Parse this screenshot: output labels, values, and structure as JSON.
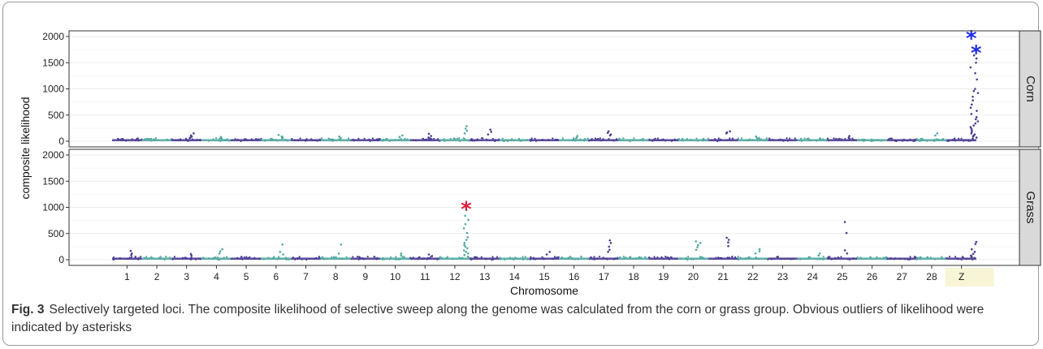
{
  "figure": {
    "caption_label": "Fig. 3",
    "caption_text": "Selectively targeted loci. The composite likelihood of selective sweep along the genome was calculated from the corn or grass group. Obvious outliers of likelihood were indicated by asterisks"
  },
  "colors": {
    "odd_chromosome": "#4a3d94",
    "even_chromosome": "#52a8a0",
    "star_blue": "#1f2ee8",
    "star_red": "#dd1c3a",
    "strip_bg": "#d9d9d9",
    "grid": "#ebebeb",
    "z_highlight": "#f7f5d6"
  },
  "chart_data": {
    "type": "scatter",
    "ylabel": "composite likelihood",
    "xlabel": "Chromosome",
    "ylim": [
      0,
      2000
    ],
    "yticks": [
      0,
      500,
      1000,
      1500,
      2000
    ],
    "grid": true,
    "chromosomes": [
      "1",
      "2",
      "3",
      "4",
      "5",
      "6",
      "7",
      "8",
      "9",
      "10",
      "11",
      "12",
      "13",
      "14",
      "15",
      "16",
      "17",
      "18",
      "19",
      "20",
      "21",
      "22",
      "23",
      "24",
      "25",
      "26",
      "27",
      "28",
      "Z"
    ],
    "facets": [
      {
        "name": "Corn",
        "asterisks": [
          {
            "chromosome": "Z",
            "value": 2080,
            "color": "blue"
          },
          {
            "chromosome": "Z",
            "value": 1800,
            "color": "blue"
          }
        ],
        "peaks": [
          {
            "chromosome": "3",
            "values": [
              150,
              110,
              90,
              70,
              60
            ]
          },
          {
            "chromosome": "4",
            "values": [
              80,
              60
            ]
          },
          {
            "chromosome": "6",
            "values": [
              120,
              90,
              70
            ]
          },
          {
            "chromosome": "8",
            "values": [
              90,
              60
            ]
          },
          {
            "chromosome": "10",
            "values": [
              110,
              80
            ]
          },
          {
            "chromosome": "11",
            "values": [
              140,
              100,
              70
            ]
          },
          {
            "chromosome": "12",
            "values": [
              290,
              240,
              200,
              150
            ]
          },
          {
            "chromosome": "13",
            "values": [
              220,
              180,
              130
            ]
          },
          {
            "chromosome": "16",
            "values": [
              100,
              70
            ]
          },
          {
            "chromosome": "17",
            "values": [
              190,
              160,
              130,
              110
            ]
          },
          {
            "chromosome": "21",
            "values": [
              190,
              170,
              150
            ]
          },
          {
            "chromosome": "22",
            "values": [
              90,
              60
            ]
          },
          {
            "chromosome": "25",
            "values": [
              100,
              70
            ]
          },
          {
            "chromosome": "28",
            "values": [
              150,
              110
            ]
          },
          {
            "chromosome": "Z",
            "values": [
              1730,
              1640,
              1580,
              1500,
              1410,
              1300,
              1180,
              1000,
              960,
              920,
              850,
              780,
              700,
              640,
              580,
              520,
              460,
              420,
              380,
              340,
              300,
              270,
              240,
              210,
              180,
              150,
              130,
              110,
              90,
              70,
              50
            ]
          }
        ]
      },
      {
        "name": "Grass",
        "asterisks": [
          {
            "chromosome": "12",
            "value": 1080,
            "color": "red"
          }
        ],
        "peaks": [
          {
            "chromosome": "1",
            "values": [
              170,
              120,
              90
            ]
          },
          {
            "chromosome": "3",
            "values": [
              110,
              80
            ]
          },
          {
            "chromosome": "4",
            "values": [
              200,
              160,
              120
            ]
          },
          {
            "chromosome": "6",
            "values": [
              290,
              150,
              100
            ]
          },
          {
            "chromosome": "8",
            "values": [
              290,
              120
            ]
          },
          {
            "chromosome": "10",
            "values": [
              120,
              80
            ]
          },
          {
            "chromosome": "11",
            "values": [
              100,
              70
            ]
          },
          {
            "chromosome": "12",
            "values": [
              950,
              840,
              760,
              680,
              600,
              510,
              430,
              380,
              320,
              280,
              250,
              220,
              180,
              150,
              120,
              90,
              60
            ]
          },
          {
            "chromosome": "15",
            "values": [
              150,
              100
            ]
          },
          {
            "chromosome": "17",
            "values": [
              370,
              320,
              250,
              190,
              150
            ]
          },
          {
            "chromosome": "20",
            "values": [
              350,
              320,
              280,
              240,
              190
            ]
          },
          {
            "chromosome": "21",
            "values": [
              420,
              380,
              330,
              260
            ]
          },
          {
            "chromosome": "22",
            "values": [
              200,
              160,
              120
            ]
          },
          {
            "chromosome": "24",
            "values": [
              120,
              80
            ]
          },
          {
            "chromosome": "25",
            "values": [
              720,
              510,
              180,
              120
            ]
          },
          {
            "chromosome": "Z",
            "values": [
              340,
              300,
              200,
              150,
              110,
              80,
              60
            ]
          }
        ]
      }
    ]
  }
}
